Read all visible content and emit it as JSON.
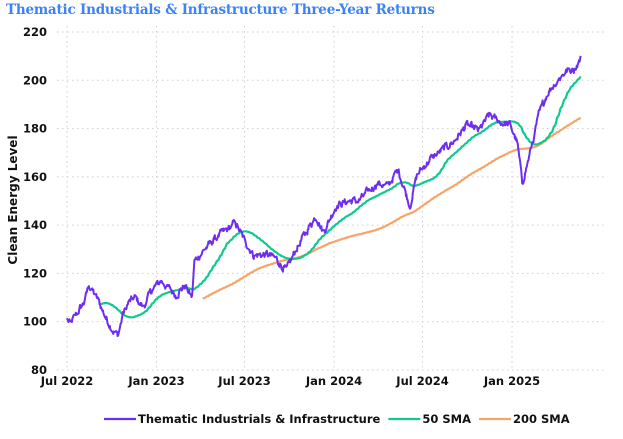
{
  "chart_data": {
    "type": "line",
    "title": "Thematic Industrials & Infrastructure Three-Year Returns",
    "xlabel": "",
    "ylabel": "Clean Energy Level",
    "ylim": [
      80,
      220
    ],
    "xlim": [
      "2022-06-15",
      "2025-06-20"
    ],
    "yticks": [
      80,
      100,
      120,
      140,
      160,
      180,
      200,
      220
    ],
    "xticks": [
      {
        "label": "Jul 2022",
        "date": "2022-07-01"
      },
      {
        "label": "Jan 2023",
        "date": "2023-01-01"
      },
      {
        "label": "Jul 2023",
        "date": "2023-07-01"
      },
      {
        "label": "Jan 2024",
        "date": "2024-01-01"
      },
      {
        "label": "Jul 2024",
        "date": "2024-07-01"
      },
      {
        "label": "Jan 2025",
        "date": "2025-01-01"
      }
    ],
    "grid": true,
    "legend_position": "bottom",
    "series": [
      {
        "name": "Thematic Industrials & Infrastructure",
        "color": "#6d2ef0",
        "kind": "price",
        "key_points": [
          [
            "2022-07-01",
            101
          ],
          [
            "2022-07-08",
            99
          ],
          [
            "2022-07-20",
            103
          ],
          [
            "2022-08-05",
            108
          ],
          [
            "2022-08-15",
            115
          ],
          [
            "2022-08-25",
            112
          ],
          [
            "2022-09-05",
            108
          ],
          [
            "2022-09-18",
            102
          ],
          [
            "2022-10-05",
            96
          ],
          [
            "2022-10-14",
            94.5
          ],
          [
            "2022-10-24",
            103
          ],
          [
            "2022-11-05",
            108
          ],
          [
            "2022-11-18",
            110
          ],
          [
            "2022-12-05",
            106
          ],
          [
            "2022-12-22",
            113
          ],
          [
            "2023-01-10",
            117
          ],
          [
            "2023-02-10",
            111
          ],
          [
            "2023-02-28",
            115
          ],
          [
            "2023-03-15",
            110
          ],
          [
            "2023-03-20",
            125
          ],
          [
            "2023-04-10",
            130
          ],
          [
            "2023-05-05",
            135
          ],
          [
            "2023-06-01",
            139
          ],
          [
            "2023-06-12",
            141
          ],
          [
            "2023-06-30",
            134
          ],
          [
            "2023-07-20",
            127.5
          ],
          [
            "2023-08-15",
            128
          ],
          [
            "2023-09-05",
            126
          ],
          [
            "2023-09-25",
            121
          ],
          [
            "2023-10-15",
            130
          ],
          [
            "2023-11-25",
            144
          ],
          [
            "2023-12-10",
            137
          ],
          [
            "2024-01-05",
            148
          ],
          [
            "2024-01-30",
            150
          ],
          [
            "2024-02-20",
            150
          ],
          [
            "2024-03-15",
            154.5
          ],
          [
            "2024-03-30",
            157.5
          ],
          [
            "2024-04-20",
            156
          ],
          [
            "2024-05-12",
            163
          ],
          [
            "2024-06-05",
            148
          ],
          [
            "2024-06-20",
            161
          ],
          [
            "2024-07-15",
            167
          ],
          [
            "2024-08-10",
            171
          ],
          [
            "2024-09-05",
            175
          ],
          [
            "2024-09-30",
            181.5
          ],
          [
            "2024-10-25",
            179
          ],
          [
            "2024-11-15",
            185.5
          ],
          [
            "2024-12-10",
            182.5
          ],
          [
            "2024-12-28",
            181.5
          ],
          [
            "2025-01-12",
            174
          ],
          [
            "2025-01-22",
            157.5
          ],
          [
            "2025-02-05",
            168
          ],
          [
            "2025-02-25",
            185.5
          ],
          [
            "2025-03-15",
            195
          ],
          [
            "2025-04-05",
            200
          ],
          [
            "2025-04-20",
            203.5
          ],
          [
            "2025-05-10",
            205
          ],
          [
            "2025-05-22",
            209
          ]
        ]
      },
      {
        "name": "50 SMA",
        "color": "#10c98f",
        "kind": "sma",
        "window": 50
      },
      {
        "name": "200 SMA",
        "color": "#f7a469",
        "kind": "sma",
        "window": 200
      }
    ]
  }
}
